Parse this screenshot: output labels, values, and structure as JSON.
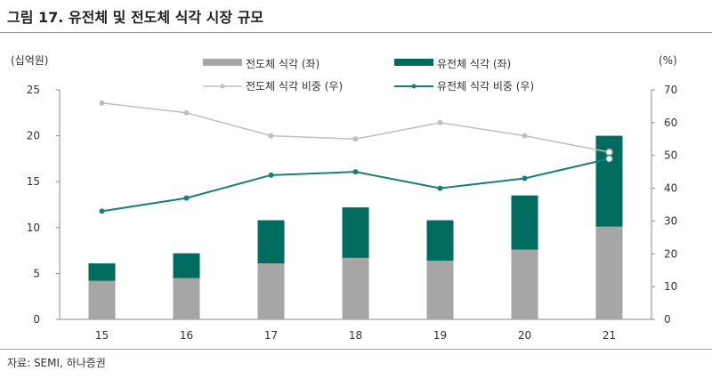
{
  "title": "그림 17. 유전체 및 전도체 식각 시장 규모",
  "source": "자료: SEMI, 하나증권",
  "chart_data": {
    "type": "bar",
    "categories": [
      "15",
      "16",
      "17",
      "18",
      "19",
      "20",
      "21"
    ],
    "left_unit": "(십억원)",
    "right_unit": "(%)",
    "ylim_left": [
      0,
      25
    ],
    "yticks_left": [
      0,
      5,
      10,
      15,
      20,
      25
    ],
    "ylim_right": [
      0,
      70
    ],
    "yticks_right": [
      0,
      10,
      20,
      30,
      40,
      50,
      60,
      70
    ],
    "legend": "top",
    "colors": {
      "gray": "#a6a6a6",
      "green": "#006b5f",
      "gray_line": "#bfbfbf",
      "green_line": "#1a7f74"
    },
    "bars": [
      {
        "name": "전도체 식각 (좌)",
        "values": [
          4.2,
          4.5,
          6.1,
          6.7,
          6.4,
          7.6,
          10.1
        ]
      },
      {
        "name": "유전체 식각 (좌)",
        "values": [
          1.9,
          2.7,
          4.7,
          5.5,
          4.4,
          5.9,
          9.9
        ]
      }
    ],
    "lines": [
      {
        "name": "전도체 식각 비중 (우)",
        "values": [
          66,
          63,
          56,
          55,
          60,
          56,
          51
        ]
      },
      {
        "name": "유전체 식각 비중 (우)",
        "values": [
          33,
          37,
          44,
          45,
          40,
          43,
          49
        ]
      }
    ]
  }
}
